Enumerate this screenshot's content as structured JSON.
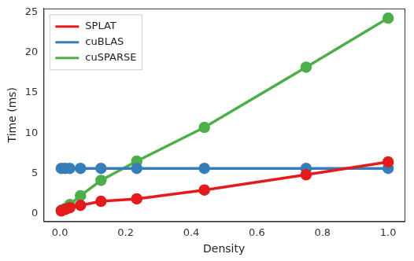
{
  "chart_data": {
    "type": "line",
    "x_label": "Density",
    "y_label": "Time (ms)",
    "x": [
      0.004,
      0.016,
      0.03,
      0.0625,
      0.125,
      0.234,
      0.44,
      0.75,
      1.0
    ],
    "series": [
      {
        "name": "SPLAT",
        "color": "#e41a1c",
        "marker": "circle",
        "line_style": "solid",
        "values": [
          0.3,
          0.5,
          0.7,
          1.0,
          1.5,
          1.8,
          2.9,
          4.8,
          6.4
        ]
      },
      {
        "name": "cuBLAS",
        "color": "#377eb8",
        "marker": "circle",
        "line_style": "solid",
        "values": [
          5.6,
          5.6,
          5.6,
          5.6,
          5.6,
          5.6,
          5.6,
          5.6,
          5.6
        ]
      },
      {
        "name": "cuSPARSE",
        "color": "#4daf4a",
        "marker": "circle",
        "line_style": "solid",
        "values": [
          0.4,
          0.6,
          1.1,
          2.2,
          4.1,
          6.5,
          10.7,
          18.2,
          24.3
        ]
      }
    ],
    "xlim": [
      -0.05,
      1.05
    ],
    "xticks": [
      {
        "value": 0,
        "label": "0.0"
      },
      {
        "value": 0.2,
        "label": "0.2"
      },
      {
        "value": 0.4,
        "label": "0.4"
      },
      {
        "value": 0.6,
        "label": "0.6"
      },
      {
        "value": 0.8,
        "label": "0.8"
      },
      {
        "value": 1,
        "label": "1.0"
      }
    ],
    "ylim": [
      -1,
      25.5
    ],
    "yticks": [
      0,
      5,
      10,
      15,
      20,
      25
    ],
    "grid": false,
    "legend": "upper left"
  }
}
